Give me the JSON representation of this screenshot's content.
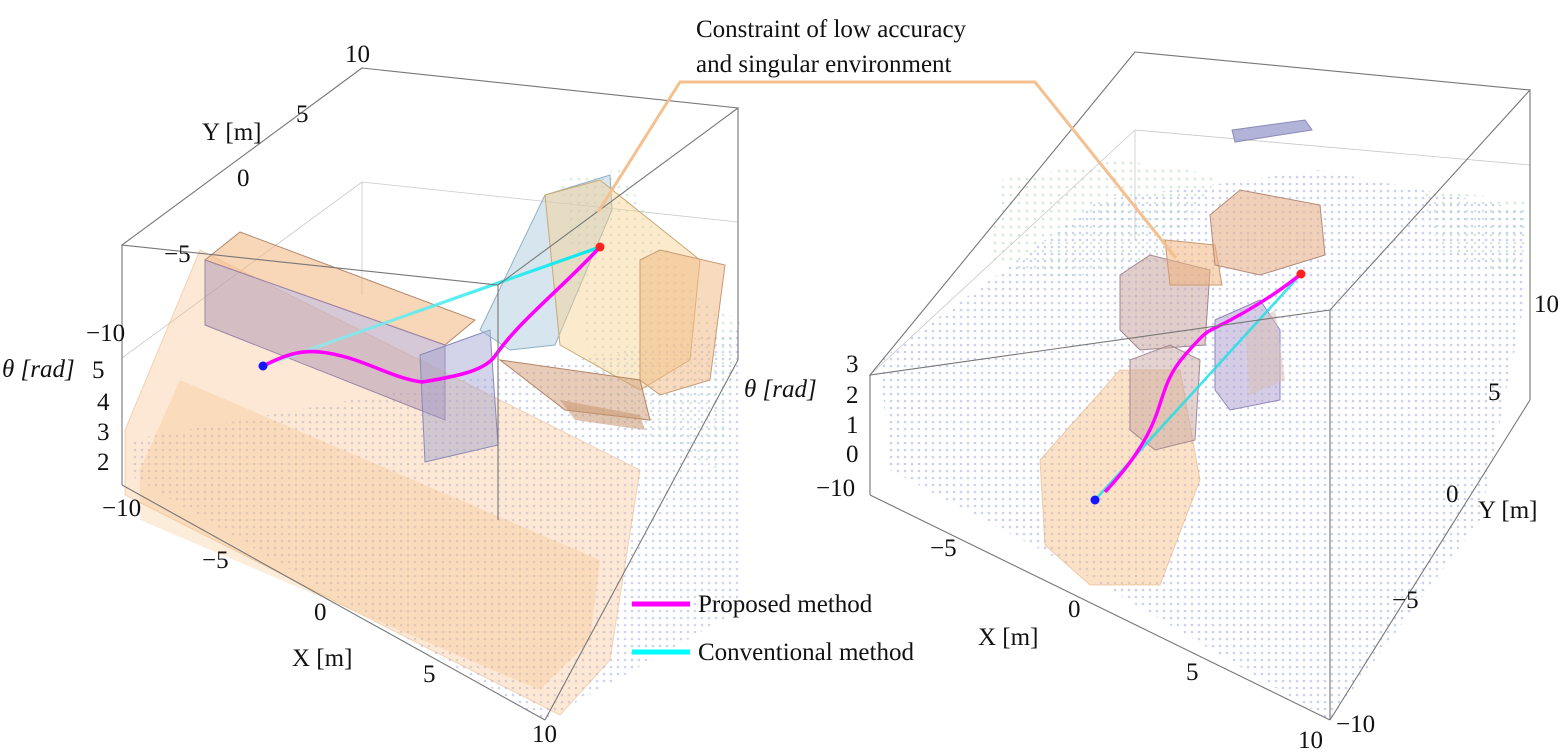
{
  "annotation": {
    "line1": "Constraint of low accuracy",
    "line2": "and singular environment",
    "color": "#f5c08f"
  },
  "legend": {
    "proposed": "Proposed method",
    "conventional": "Conventional method",
    "proposed_color": "#ff00ff",
    "conventional_color": "#00ffff"
  },
  "colors": {
    "obstacle_fill": "#f6b97a",
    "obstacle_shadow": "#a59ad0",
    "points_blue": "#9aa5e6",
    "points_green": "#a8d9b6",
    "start": "#1515ff",
    "goal": "#ff2020"
  },
  "left_plot": {
    "y_label": "Y [m]",
    "x_label": "X [m]",
    "theta_label": "θ [rad]",
    "y_ticks": [
      "10",
      "5",
      "0",
      "−5",
      "−10"
    ],
    "x_ticks": [
      "−10",
      "−5",
      "0",
      "5",
      "10"
    ],
    "theta_ticks": [
      "5",
      "4",
      "3",
      "2"
    ]
  },
  "right_plot": {
    "y_label": "Y [m]",
    "x_label": "X [m]",
    "theta_label": "θ [rad]",
    "y_ticks": [
      "10",
      "5",
      "0",
      "−5",
      "−10"
    ],
    "x_ticks": [
      "−10",
      "−5",
      "0",
      "5",
      "10"
    ],
    "theta_ticks": [
      "3",
      "2",
      "1",
      "0"
    ]
  }
}
